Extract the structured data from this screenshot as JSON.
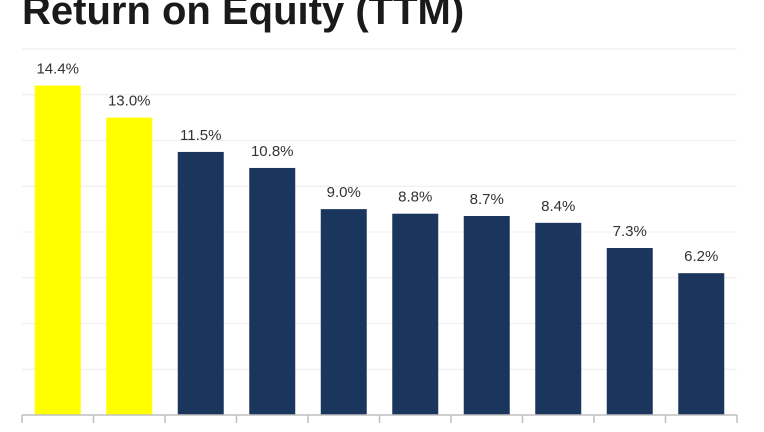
{
  "chart_data": {
    "type": "bar",
    "title": "Return on Equity (TTM)",
    "categories": [
      null,
      null,
      null,
      null,
      null,
      null,
      null,
      null,
      null,
      null
    ],
    "values": [
      14.4,
      13.0,
      11.5,
      10.8,
      9.0,
      8.8,
      8.7,
      8.4,
      7.3,
      6.2
    ],
    "value_labels": [
      "14.4%",
      "13.0%",
      "11.5%",
      "10.8%",
      "9.0%",
      "8.8%",
      "8.7%",
      "8.4%",
      "7.3%",
      "6.2%"
    ],
    "colors": [
      "#ffff00",
      "#ffff00",
      "#1b365d",
      "#1b365d",
      "#1b365d",
      "#1b365d",
      "#1b365d",
      "#1b365d",
      "#1b365d",
      "#1b365d"
    ],
    "ylim": [
      0,
      16
    ],
    "yticks": [
      0,
      2,
      4,
      6,
      8,
      10,
      12,
      14,
      16
    ],
    "grid": true
  }
}
